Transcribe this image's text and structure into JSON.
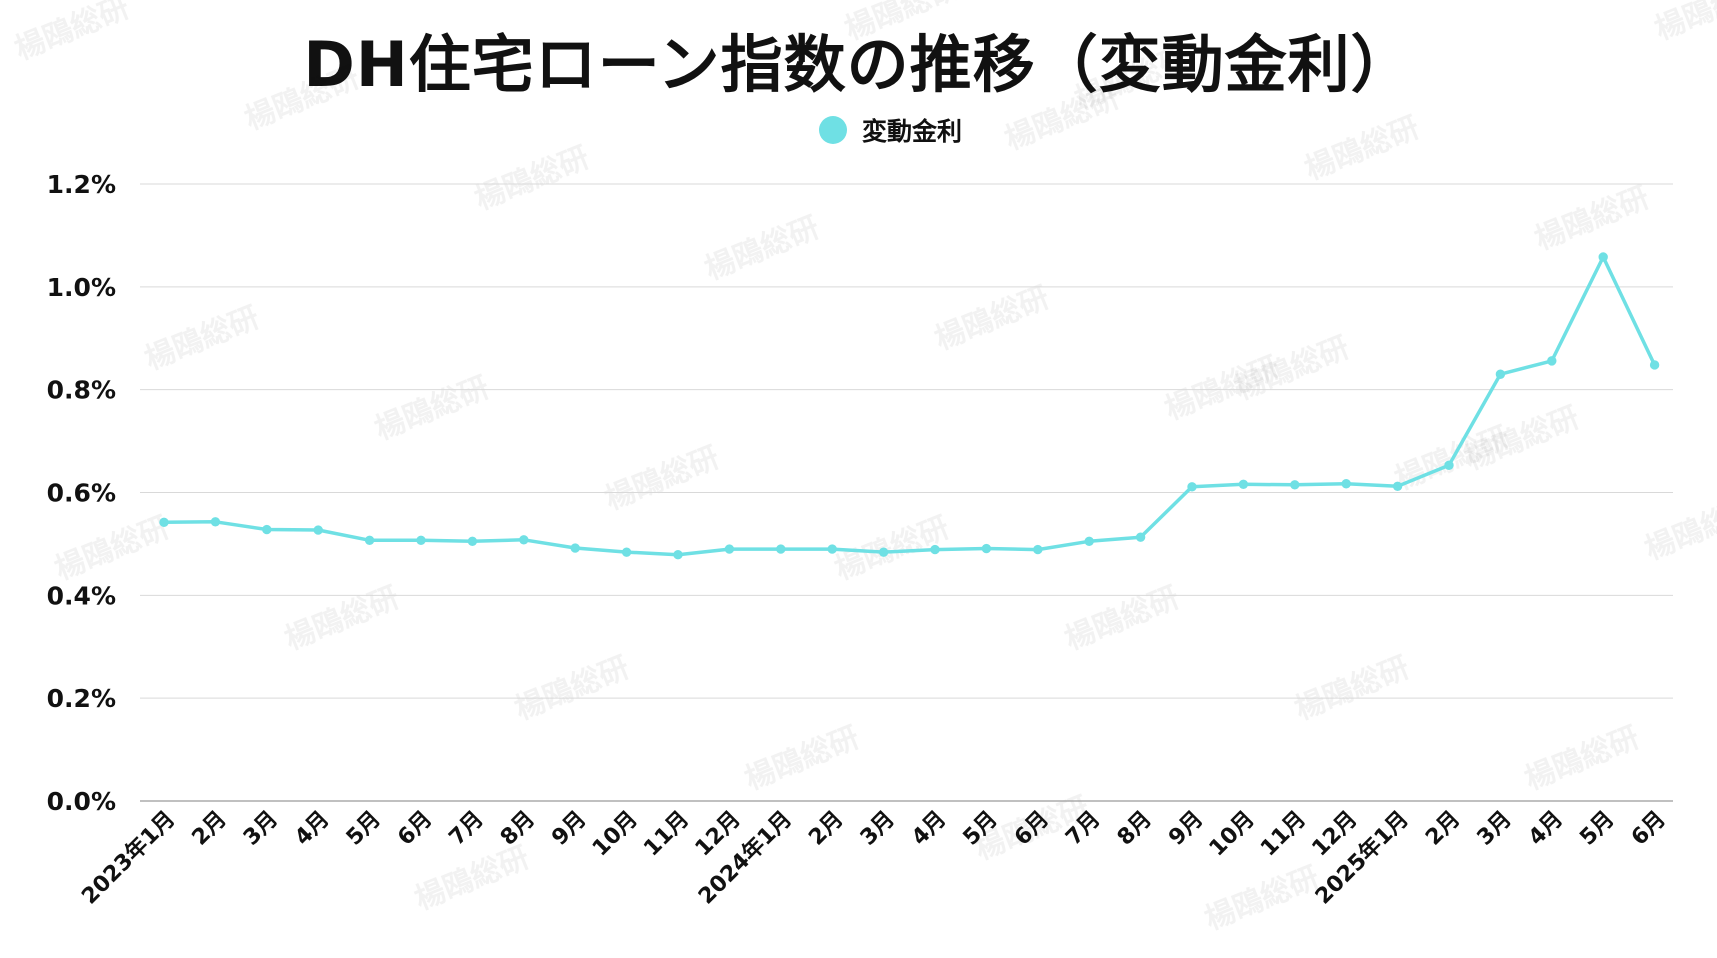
{
  "chart_data": {
    "type": "line",
    "title": "DH住宅ローン指数の推移（変動金利）",
    "xlabel": "",
    "ylabel": "",
    "categories": [
      "2023年1月",
      "2月",
      "3月",
      "4月",
      "5月",
      "6月",
      "7月",
      "8月",
      "9月",
      "10月",
      "11月",
      "12月",
      "2024年1月",
      "2月",
      "3月",
      "4月",
      "5月",
      "6月",
      "7月",
      "8月",
      "9月",
      "10月",
      "11月",
      "12月",
      "2025年1月",
      "2月",
      "3月",
      "4月",
      "5月",
      "6月"
    ],
    "series": [
      {
        "name": "変動金利",
        "color": "#6fe0e4",
        "values": [
          0.542,
          0.543,
          0.528,
          0.527,
          0.507,
          0.507,
          0.505,
          0.508,
          0.492,
          0.484,
          0.479,
          0.49,
          0.49,
          0.49,
          0.484,
          0.489,
          0.491,
          0.489,
          0.505,
          0.513,
          0.611,
          0.616,
          0.615,
          0.617,
          0.612,
          0.653,
          0.83,
          0.856,
          1.058,
          0.848
        ]
      }
    ],
    "ylim": [
      0,
      1.2
    ],
    "yticks": [
      "0.0%",
      "0.2%",
      "0.4%",
      "0.6%",
      "0.8%",
      "1.0%",
      "1.2%"
    ],
    "grid": true,
    "legend_position": "top-center"
  },
  "watermark_text": "楊鴎総研"
}
